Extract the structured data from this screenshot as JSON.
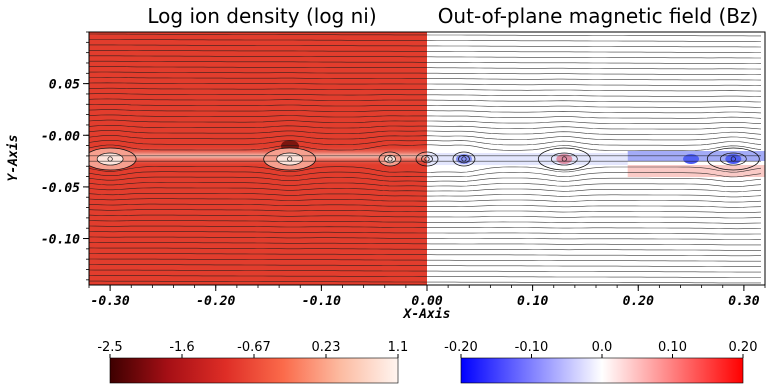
{
  "chart_data": {
    "type": "heatmap",
    "panels": [
      {
        "title": "Log ion density (log ni)",
        "x_range": [
          -0.32,
          0.0
        ],
        "colormap": "reds",
        "colorbar": {
          "range": [
            -2.5,
            1.1
          ],
          "ticks": [
            "-2.5",
            "-1.6",
            "-0.67",
            "0.23",
            "1.1"
          ],
          "colors": [
            "#3d0000",
            "#a50f15",
            "#de2d26",
            "#fb6a4a",
            "#fcbba1",
            "#fff5f0"
          ]
        }
      },
      {
        "title": "Out-of-plane magnetic field (Bz)",
        "x_range": [
          0.0,
          0.32
        ],
        "colormap": "blue-white-red",
        "colorbar": {
          "range": [
            -0.2,
            0.2
          ],
          "ticks": [
            "-0.20",
            "-0.10",
            "0.0",
            "0.10",
            "0.20"
          ],
          "colors": [
            "#0000ff",
            "#8080ff",
            "#ffffff",
            "#ff8080",
            "#ff0000"
          ]
        }
      }
    ],
    "xlabel": "X-Axis",
    "ylabel": "Y-Axis",
    "xlim": [
      -0.32,
      0.32
    ],
    "ylim": [
      -0.145,
      0.1
    ],
    "x_ticks": [
      -0.3,
      -0.2,
      -0.1,
      0.0,
      0.1,
      0.2,
      0.3
    ],
    "x_tick_labels": [
      "-0.30",
      "-0.20",
      "-0.10",
      "0.00",
      "0.10",
      "0.20",
      "0.30"
    ],
    "y_ticks": [
      0.05,
      0.0,
      -0.05,
      -0.1
    ],
    "y_tick_labels": [
      "0.05",
      "-0.00",
      "-0.05",
      "-0.10"
    ],
    "current_sheet_y": -0.023,
    "magnetic_islands_x": [
      -0.3,
      -0.13,
      -0.035,
      0.0,
      0.035,
      0.13,
      0.29
    ],
    "bz_features": [
      {
        "x": 0.035,
        "sign": "negative"
      },
      {
        "x": 0.13,
        "sign": "positive"
      },
      {
        "x": 0.25,
        "sign": "negative"
      },
      {
        "x": 0.29,
        "sign": "negative"
      }
    ],
    "grid": false,
    "legend": "colorbars-bottom"
  }
}
